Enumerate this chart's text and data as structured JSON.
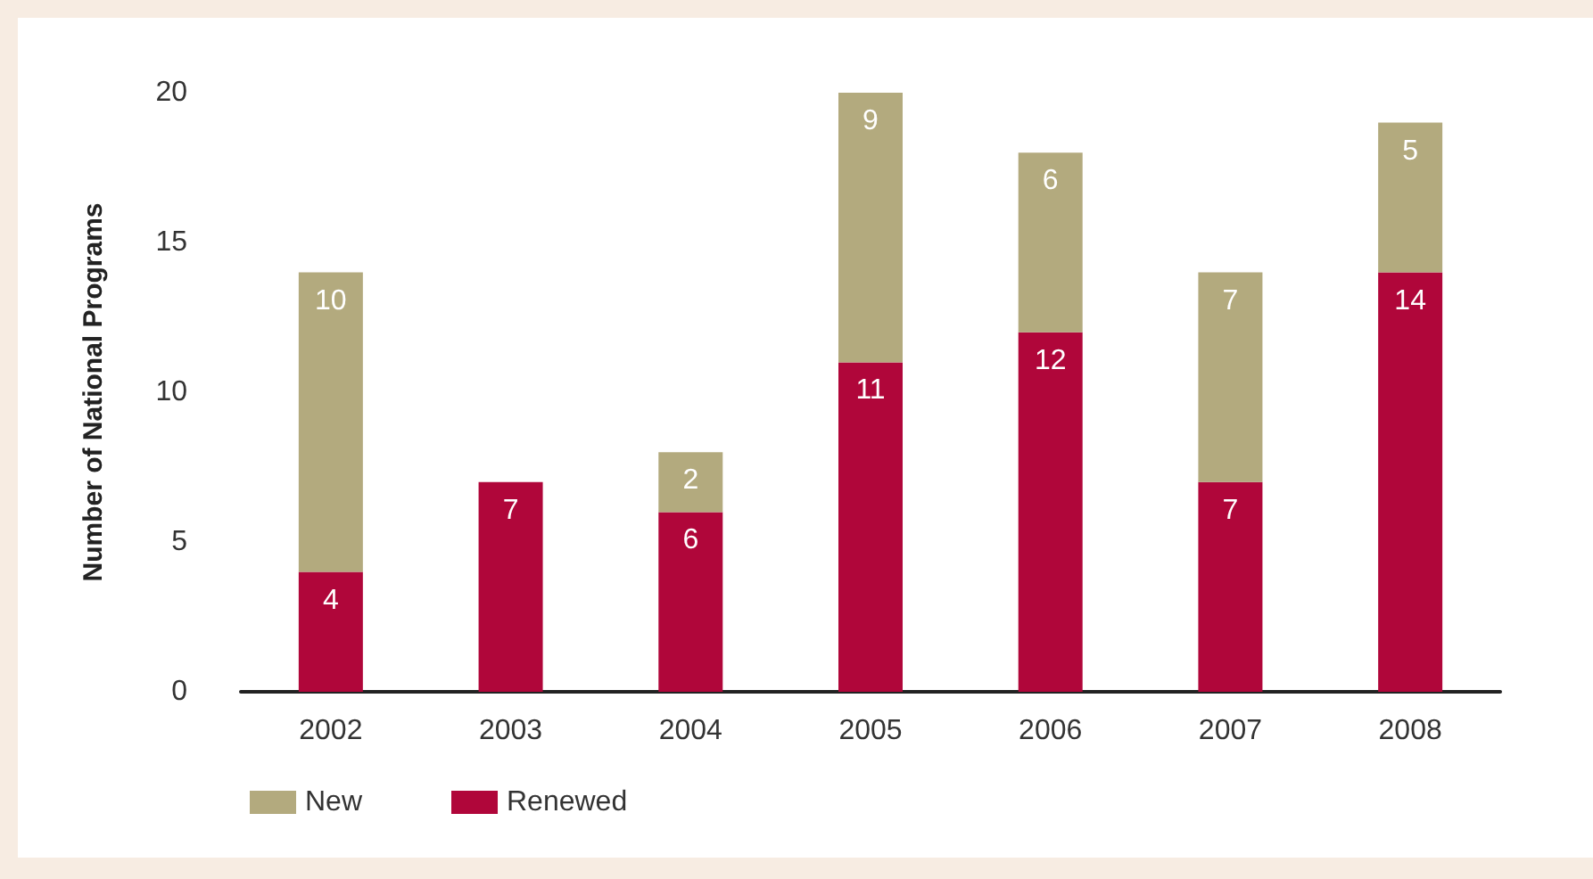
{
  "chart_data": {
    "type": "bar",
    "stacked": true,
    "ylabel": "Number of National Programs",
    "categories": [
      "2002",
      "2003",
      "2004",
      "2005",
      "2006",
      "2007",
      "2008"
    ],
    "series": [
      {
        "name": "Renewed",
        "color": "#b0063a",
        "values": [
          4,
          7,
          6,
          11,
          12,
          7,
          14
        ]
      },
      {
        "name": "New",
        "color": "#b3aa7e",
        "values": [
          10,
          null,
          2,
          9,
          6,
          7,
          5
        ]
      }
    ],
    "ylim": [
      0,
      20
    ],
    "yticks": [
      0,
      5,
      10,
      15,
      20
    ],
    "grid": false,
    "legend": "bottom left",
    "data_labels": true
  }
}
